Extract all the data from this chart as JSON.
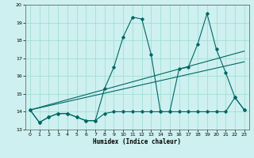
{
  "xlabel": "Humidex (Indice chaleur)",
  "bg_color": "#cef0f0",
  "line_color": "#006666",
  "grid_color": "#99ddcc",
  "xlim": [
    -0.5,
    23.5
  ],
  "ylim": [
    13,
    20
  ],
  "xticks": [
    0,
    1,
    2,
    3,
    4,
    5,
    6,
    7,
    8,
    9,
    10,
    11,
    12,
    13,
    14,
    15,
    16,
    17,
    18,
    19,
    20,
    21,
    22,
    23
  ],
  "yticks": [
    13,
    14,
    15,
    16,
    17,
    18,
    19,
    20
  ],
  "series1_x": [
    0,
    1,
    2,
    3,
    4,
    5,
    6,
    7,
    8,
    9,
    10,
    11,
    12,
    13,
    14,
    15,
    16,
    17,
    18,
    19,
    20,
    21,
    22,
    23
  ],
  "series1_y": [
    14.1,
    13.4,
    13.7,
    13.9,
    13.9,
    13.7,
    13.5,
    13.5,
    15.3,
    16.5,
    18.2,
    19.3,
    19.2,
    17.2,
    14.0,
    14.0,
    16.4,
    16.5,
    17.8,
    19.5,
    17.5,
    16.2,
    14.8,
    14.1
  ],
  "series2_x": [
    0,
    1,
    2,
    3,
    4,
    5,
    6,
    7,
    8,
    9,
    10,
    11,
    12,
    13,
    14,
    15,
    16,
    17,
    18,
    19,
    20,
    21,
    22,
    23
  ],
  "series2_y": [
    14.1,
    13.4,
    13.7,
    13.9,
    13.9,
    13.7,
    13.5,
    13.5,
    13.9,
    14.0,
    14.0,
    14.0,
    14.0,
    14.0,
    14.0,
    14.0,
    14.0,
    14.0,
    14.0,
    14.0,
    14.0,
    14.0,
    14.8,
    14.1
  ],
  "trend1_x": [
    0,
    23
  ],
  "trend1_y": [
    14.1,
    17.4
  ],
  "trend2_x": [
    0,
    23
  ],
  "trend2_y": [
    14.1,
    16.8
  ]
}
